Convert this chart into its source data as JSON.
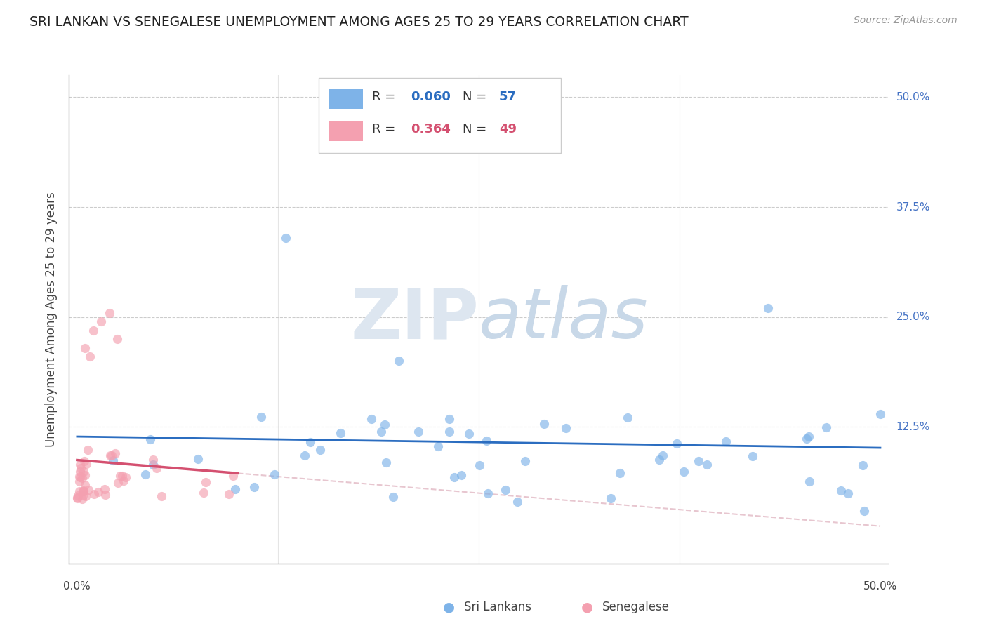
{
  "title": "SRI LANKAN VS SENEGALESE UNEMPLOYMENT AMONG AGES 25 TO 29 YEARS CORRELATION CHART",
  "source": "Source: ZipAtlas.com",
  "ylabel": "Unemployment Among Ages 25 to 29 years",
  "xlim": [
    0.0,
    0.5
  ],
  "ylim": [
    0.0,
    0.52
  ],
  "sri_lanka_R": 0.06,
  "sri_lanka_N": 57,
  "senegal_R": 0.364,
  "senegal_N": 49,
  "sri_lanka_color": "#7EB3E8",
  "senegal_color": "#F4A0B0",
  "sri_lanka_line_color": "#2B6DC0",
  "senegal_line_color": "#D45070",
  "ytick_color": "#4472C4",
  "background_color": "#FFFFFF",
  "grid_color": "#CCCCCC",
  "watermark_zip_color": "#DDE6F0",
  "watermark_atlas_color": "#C8D8E8"
}
